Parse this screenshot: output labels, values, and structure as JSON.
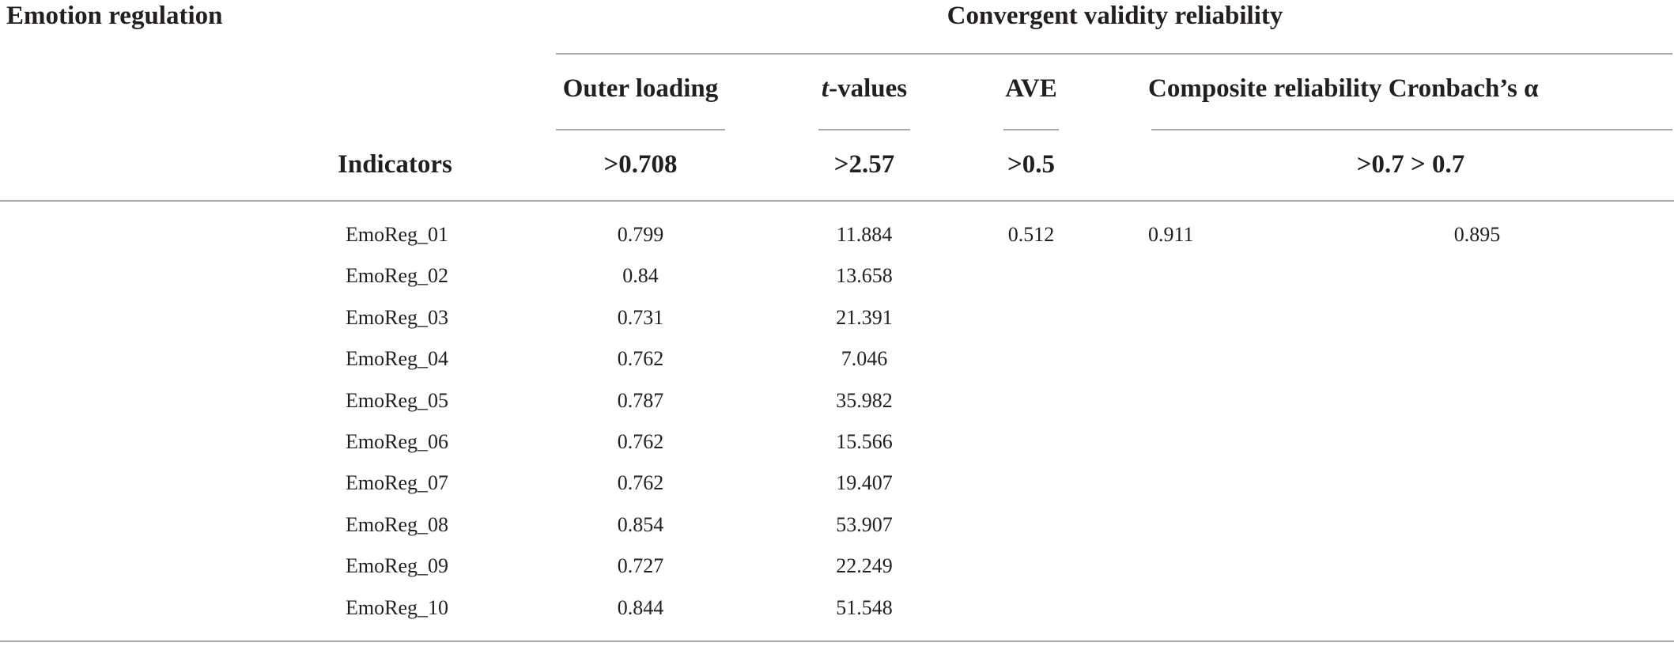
{
  "header": {
    "construct": "Emotion regulation",
    "group": "Convergent validity reliability",
    "columns": {
      "outer_loading": "Outer loading",
      "t_values_italic": "t",
      "t_values_rest": "-values",
      "ave": "AVE",
      "composite_cronbach": "Composite reliability Cronbach’s α"
    }
  },
  "thresholds": {
    "indicators_label": "Indicators",
    "outer_loading": ">0.708",
    "t_values": ">2.57",
    "ave": ">0.5",
    "composite_cronbach": ">0.7 > 0.7"
  },
  "rows": [
    {
      "indicator": "EmoReg_01",
      "outer_loading": "0.799",
      "t_value": "11.884",
      "ave": "0.512",
      "composite": "0.911",
      "cronbach": "0.895"
    },
    {
      "indicator": "EmoReg_02",
      "outer_loading": "0.84",
      "t_value": "13.658",
      "ave": "",
      "composite": "",
      "cronbach": ""
    },
    {
      "indicator": "EmoReg_03",
      "outer_loading": "0.731",
      "t_value": "21.391",
      "ave": "",
      "composite": "",
      "cronbach": ""
    },
    {
      "indicator": "EmoReg_04",
      "outer_loading": "0.762",
      "t_value": "7.046",
      "ave": "",
      "composite": "",
      "cronbach": ""
    },
    {
      "indicator": "EmoReg_05",
      "outer_loading": "0.787",
      "t_value": "35.982",
      "ave": "",
      "composite": "",
      "cronbach": ""
    },
    {
      "indicator": "EmoReg_06",
      "outer_loading": "0.762",
      "t_value": "15.566",
      "ave": "",
      "composite": "",
      "cronbach": ""
    },
    {
      "indicator": "EmoReg_07",
      "outer_loading": "0.762",
      "t_value": "19.407",
      "ave": "",
      "composite": "",
      "cronbach": ""
    },
    {
      "indicator": "EmoReg_08",
      "outer_loading": "0.854",
      "t_value": "53.907",
      "ave": "",
      "composite": "",
      "cronbach": ""
    },
    {
      "indicator": "EmoReg_09",
      "outer_loading": "0.727",
      "t_value": "22.249",
      "ave": "",
      "composite": "",
      "cronbach": ""
    },
    {
      "indicator": "EmoReg_10",
      "outer_loading": "0.844",
      "t_value": "51.548",
      "ave": "",
      "composite": "",
      "cronbach": ""
    }
  ]
}
